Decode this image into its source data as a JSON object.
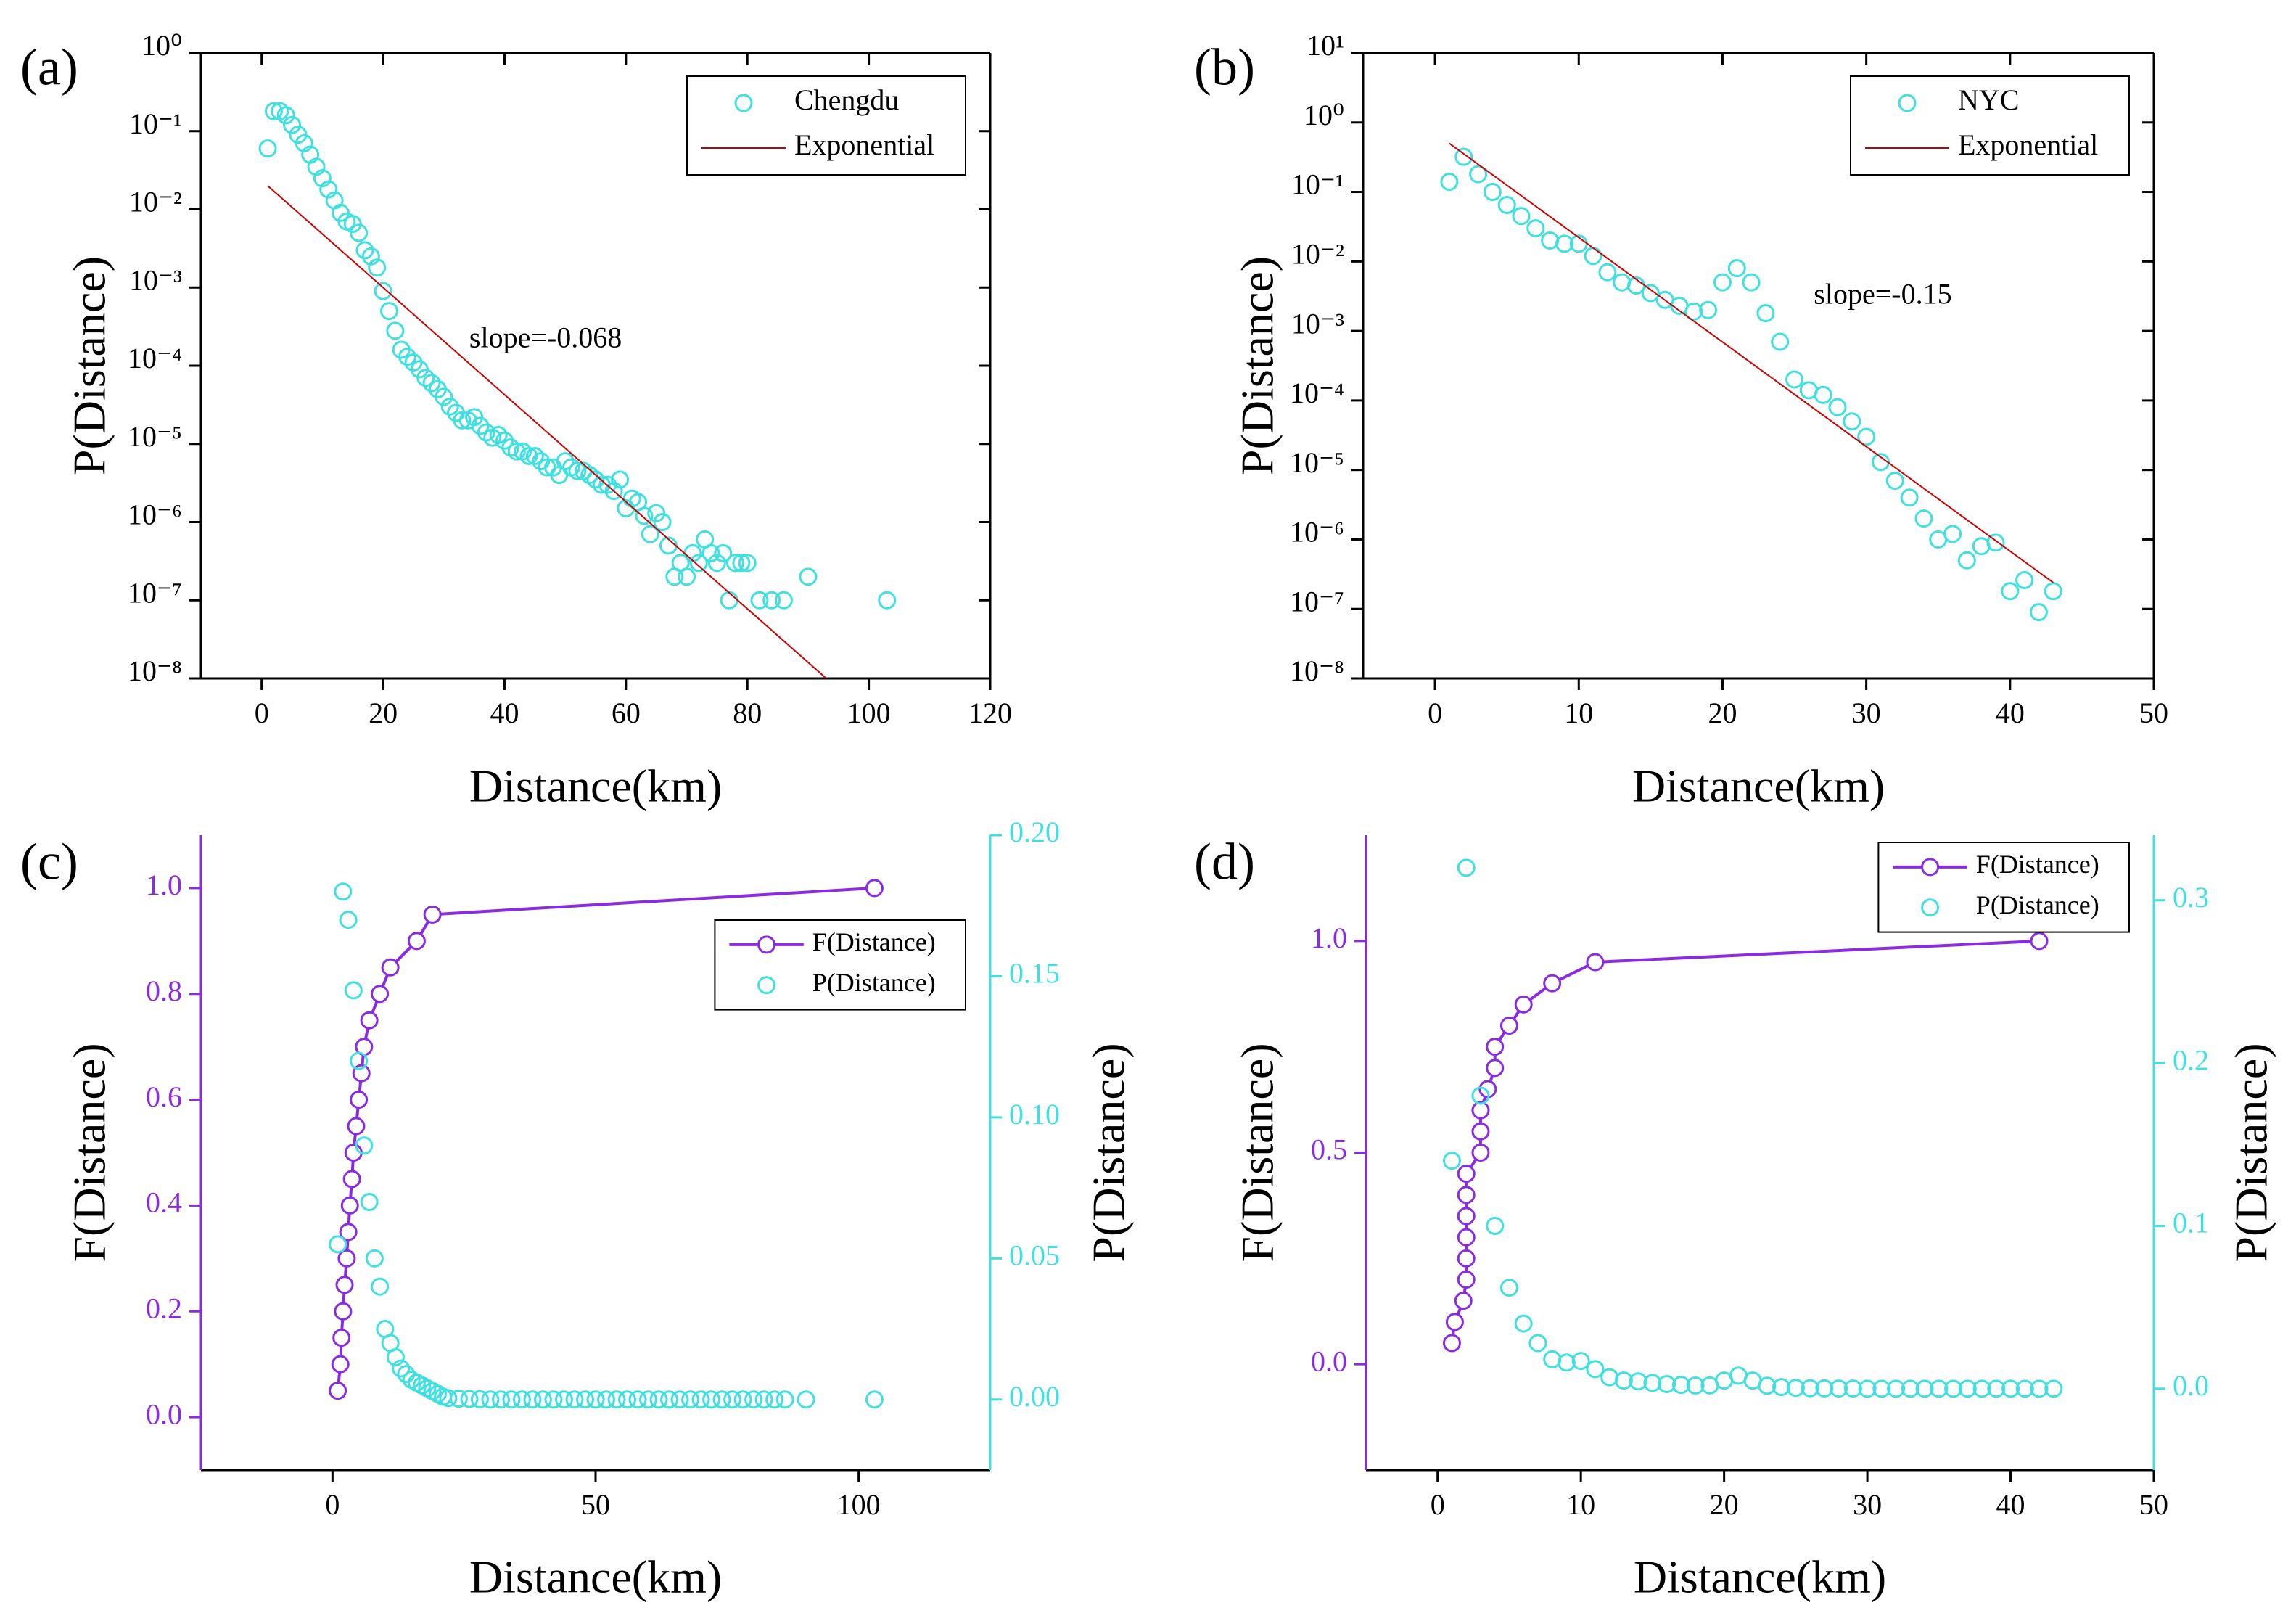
{
  "chart_data": [
    {
      "type": "scatter",
      "panel_label": "(a)",
      "xlabel": "Distance(km)",
      "ylabel": "P(Distance)",
      "yscale": "log",
      "xlim": [
        -10,
        120
      ],
      "xticks": [
        0,
        20,
        40,
        60,
        80,
        100,
        120
      ],
      "ylim": [
        1e-08,
        1
      ],
      "yticks": [
        {
          "value": 1e-08,
          "label": "10⁻⁸"
        },
        {
          "value": 1e-07,
          "label": "10⁻⁷"
        },
        {
          "value": 1e-06,
          "label": "10⁻⁶"
        },
        {
          "value": 1e-05,
          "label": "10⁻⁵"
        },
        {
          "value": 0.0001,
          "label": "10⁻⁴"
        },
        {
          "value": 0.001,
          "label": "10⁻³"
        },
        {
          "value": 0.01,
          "label": "10⁻²"
        },
        {
          "value": 0.1,
          "label": "10⁻¹"
        },
        {
          "value": 1,
          "label": "10⁰"
        }
      ],
      "legend": "upper right",
      "annotation": "slope=-0.068",
      "series": [
        {
          "name": "Chengdu",
          "color": "#40e0e0",
          "mode": "markers",
          "x": [
            1,
            2,
            3,
            4,
            5,
            6,
            7,
            8,
            9,
            10,
            11,
            12,
            13,
            14,
            15,
            16,
            17,
            18,
            19,
            20,
            21,
            22,
            23,
            24,
            25,
            26,
            27,
            28,
            29,
            30,
            31,
            32,
            33,
            34,
            35,
            36,
            37,
            38,
            39,
            40,
            41,
            42,
            43,
            44,
            45,
            46,
            47,
            48,
            49,
            50,
            51,
            52,
            53,
            54,
            55,
            56,
            57,
            58,
            59,
            60,
            61,
            62,
            63,
            64,
            65,
            66,
            67,
            68,
            69,
            70,
            71,
            72,
            73,
            74,
            75,
            76,
            77,
            78,
            79,
            80,
            82,
            84,
            86,
            90,
            103
          ],
          "values": [
            0.06,
            0.18,
            0.18,
            0.16,
            0.12,
            0.09,
            0.07,
            0.05,
            0.035,
            0.025,
            0.018,
            0.013,
            0.009,
            0.007,
            0.0065,
            0.005,
            0.003,
            0.0025,
            0.0018,
            0.0009,
            0.0005,
            0.00028,
            0.00016,
            0.00013,
            0.00011,
            9e-05,
            7e-05,
            6e-05,
            5e-05,
            4e-05,
            3e-05,
            2.5e-05,
            2e-05,
            2e-05,
            2.2e-05,
            1.7e-05,
            1.4e-05,
            1.2e-05,
            1.3e-05,
            1.1e-05,
            9e-06,
            8e-06,
            8e-06,
            7e-06,
            7e-06,
            6e-06,
            5e-06,
            5e-06,
            4e-06,
            6e-06,
            5e-06,
            4.5e-06,
            4.5e-06,
            4e-06,
            3.5e-06,
            3e-06,
            3e-06,
            2.5e-06,
            3.5e-06,
            1.5e-06,
            2e-06,
            1.8e-06,
            1.2e-06,
            7e-07,
            1.3e-06,
            1e-06,
            5e-07,
            2e-07,
            3e-07,
            2e-07,
            4e-07,
            3e-07,
            6e-07,
            4e-07,
            3e-07,
            4e-07,
            1e-07,
            3e-07,
            3e-07,
            3e-07,
            1e-07,
            1e-07,
            1e-07,
            2e-07,
            1e-07
          ]
        },
        {
          "name": "Exponential",
          "color": "#cc0000",
          "mode": "line",
          "x": [
            1,
            93
          ],
          "values": [
            0.02,
            1e-08
          ]
        }
      ]
    },
    {
      "type": "scatter",
      "panel_label": "(b)",
      "xlabel": "Distance(km)",
      "ylabel": "P(Distance)",
      "yscale": "log",
      "xlim": [
        -5,
        50
      ],
      "xticks": [
        0,
        10,
        20,
        30,
        40,
        50
      ],
      "ylim": [
        1e-08,
        10
      ],
      "yticks": [
        {
          "value": 1e-08,
          "label": "10⁻⁸"
        },
        {
          "value": 1e-07,
          "label": "10⁻⁷"
        },
        {
          "value": 1e-06,
          "label": "10⁻⁶"
        },
        {
          "value": 1e-05,
          "label": "10⁻⁵"
        },
        {
          "value": 0.0001,
          "label": "10⁻⁴"
        },
        {
          "value": 0.001,
          "label": "10⁻³"
        },
        {
          "value": 0.01,
          "label": "10⁻²"
        },
        {
          "value": 0.1,
          "label": "10⁻¹"
        },
        {
          "value": 1,
          "label": "10⁰"
        },
        {
          "value": 10,
          "label": "10¹"
        }
      ],
      "legend": "upper right",
      "annotation": "slope=-0.15",
      "series": [
        {
          "name": "NYC",
          "color": "#40e0e0",
          "mode": "markers",
          "x": [
            1,
            2,
            3,
            4,
            5,
            6,
            7,
            8,
            9,
            10,
            11,
            12,
            13,
            14,
            15,
            16,
            17,
            18,
            19,
            20,
            21,
            22,
            23,
            24,
            25,
            26,
            27,
            28,
            29,
            30,
            31,
            32,
            33,
            34,
            35,
            36,
            37,
            38,
            39,
            40,
            41,
            42,
            43
          ],
          "values": [
            0.14,
            0.32,
            0.18,
            0.1,
            0.065,
            0.045,
            0.03,
            0.02,
            0.018,
            0.018,
            0.012,
            0.007,
            0.005,
            0.0045,
            0.0035,
            0.0028,
            0.0023,
            0.0019,
            0.002,
            0.005,
            0.008,
            0.005,
            0.0018,
            0.0007,
            0.0002,
            0.00014,
            0.00012,
            8e-05,
            5e-05,
            3e-05,
            1.3e-05,
            7e-06,
            4e-06,
            2e-06,
            1e-06,
            1.2e-06,
            5e-07,
            8e-07,
            9e-07,
            1.8e-07,
            2.6e-07,
            9e-08,
            1.8e-07
          ]
        },
        {
          "name": "Exponential",
          "color": "#cc0000",
          "mode": "line",
          "x": [
            1,
            43
          ],
          "values": [
            0.5,
            2.4e-07
          ]
        }
      ]
    },
    {
      "type": "scatter",
      "panel_label": "(c)",
      "xlabel": "Distance(km)",
      "ylabel": "F(Distance)",
      "y2label": "P(Distance)",
      "xlim": [
        -25,
        125
      ],
      "xticks": [
        0,
        50,
        100
      ],
      "ylim": [
        -0.1,
        1.1
      ],
      "yticks": [
        {
          "value": 0,
          "label": "0.0"
        },
        0.2,
        0.4,
        0.6,
        0.8,
        {
          "value": 1,
          "label": "1.0"
        }
      ],
      "y2lim": [
        -0.025,
        0.2
      ],
      "y2ticks": [
        {
          "value": 0,
          "label": "0.00"
        },
        0.05,
        {
          "value": 0.1,
          "label": "0.10"
        },
        0.15,
        {
          "value": 0.2,
          "label": "0.20"
        }
      ],
      "ycolor": "#8a2be2",
      "y2color": "#40e0e0",
      "legend": "upper right",
      "series": [
        {
          "name": "F(Distance)",
          "color": "#8a2be2",
          "mode": "line+markers",
          "x": [
            1,
            1.5,
            1.7,
            2,
            2.3,
            2.7,
            3,
            3.3,
            3.7,
            4,
            4.5,
            5,
            5.5,
            6,
            7,
            9,
            11,
            16,
            19,
            103
          ],
          "values": [
            0.05,
            0.1,
            0.15,
            0.2,
            0.25,
            0.3,
            0.35,
            0.4,
            0.45,
            0.5,
            0.55,
            0.6,
            0.65,
            0.7,
            0.75,
            0.8,
            0.85,
            0.9,
            0.95,
            1
          ]
        },
        {
          "name": "P(Distance)",
          "color": "#40e0e0",
          "mode": "markers",
          "axis": "y2",
          "x": [
            1,
            2,
            3,
            4,
            5,
            6,
            7,
            8,
            9,
            10,
            11,
            12,
            13,
            14,
            15,
            16,
            17,
            18,
            19,
            20,
            21,
            22,
            24,
            26,
            28,
            30,
            32,
            34,
            36,
            38,
            40,
            42,
            44,
            46,
            48,
            50,
            52,
            54,
            56,
            58,
            60,
            62,
            64,
            66,
            68,
            70,
            72,
            74,
            76,
            78,
            80,
            82,
            84,
            86,
            90,
            103
          ],
          "values": [
            0.055,
            0.18,
            0.17,
            0.145,
            0.12,
            0.09,
            0.07,
            0.05,
            0.04,
            0.025,
            0.02,
            0.015,
            0.011,
            0.009,
            0.007,
            0.006,
            0.005,
            0.004,
            0.003,
            0.002,
            0.001,
            0.0005,
            0.0003,
            0.0002,
            0.0001,
            0,
            0,
            0,
            0,
            0,
            0,
            0,
            0,
            0,
            0,
            0,
            0,
            0,
            0,
            0,
            0,
            0,
            0,
            0,
            0,
            0,
            0,
            0,
            0,
            0,
            0,
            0,
            0,
            0,
            0,
            0
          ]
        }
      ]
    },
    {
      "type": "scatter",
      "panel_label": "(d)",
      "xlabel": "Distance(km)",
      "ylabel": "F(Distance)",
      "y2label": "P(Distance)",
      "xlim": [
        -5,
        50
      ],
      "xticks": [
        0,
        10,
        20,
        30,
        40,
        50
      ],
      "ylim": [
        -0.25,
        1.25
      ],
      "yticks": [
        {
          "value": 0,
          "label": "0.0"
        },
        0.5,
        {
          "value": 1,
          "label": "1.0"
        }
      ],
      "y2lim": [
        -0.05,
        0.34
      ],
      "y2ticks": [
        {
          "value": 0,
          "label": "0.0"
        },
        0.1,
        0.2,
        0.3
      ],
      "ycolor": "#8a2be2",
      "y2color": "#40e0e0",
      "legend": "upper right",
      "series": [
        {
          "name": "F(Distance)",
          "color": "#8a2be2",
          "mode": "line+markers",
          "x": [
            1,
            1.2,
            1.8,
            2,
            2,
            2,
            2,
            2,
            2,
            3,
            3,
            3,
            3.5,
            4,
            4,
            5,
            6,
            8,
            11,
            42
          ],
          "values": [
            0.05,
            0.1,
            0.15,
            0.2,
            0.25,
            0.3,
            0.35,
            0.4,
            0.45,
            0.5,
            0.55,
            0.6,
            0.65,
            0.7,
            0.75,
            0.8,
            0.85,
            0.9,
            0.95,
            1
          ]
        },
        {
          "name": "P(Distance)",
          "color": "#40e0e0",
          "mode": "markers",
          "axis": "y2",
          "x": [
            1,
            2,
            3,
            4,
            5,
            6,
            7,
            8,
            9,
            10,
            11,
            12,
            13,
            14,
            15,
            16,
            17,
            18,
            19,
            20,
            21,
            22,
            23,
            24,
            25,
            26,
            27,
            28,
            29,
            30,
            31,
            32,
            33,
            34,
            35,
            36,
            37,
            38,
            39,
            40,
            41,
            42,
            43
          ],
          "values": [
            0.14,
            0.32,
            0.18,
            0.1,
            0.062,
            0.04,
            0.028,
            0.018,
            0.016,
            0.017,
            0.012,
            0.007,
            0.005,
            0.0045,
            0.0035,
            0.0028,
            0.0023,
            0.0019,
            0.002,
            0.005,
            0.008,
            0.005,
            0.0018,
            0.001,
            0.0005,
            0.0003,
            0.0002,
            0.0001,
            0.0001,
            0,
            0,
            0,
            0,
            0,
            0,
            0,
            0,
            0,
            0,
            0,
            0,
            0,
            0
          ]
        }
      ]
    }
  ]
}
